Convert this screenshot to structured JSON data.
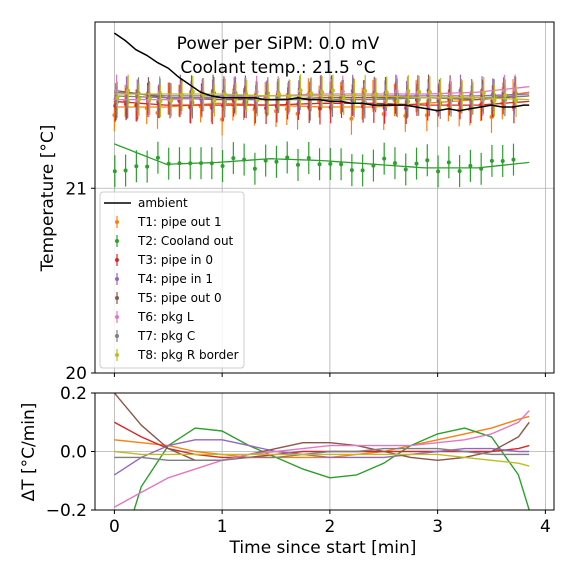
{
  "chart_data": [
    {
      "type": "scatter",
      "annotations": [
        "Power per SiPM: 0.0 mV",
        "Coolant temp.: 21.5 °C"
      ],
      "xlabel": "",
      "ylabel": "Temperature [°C]",
      "xlim": [
        -0.18,
        4.08
      ],
      "ylim": [
        20,
        21.9
      ],
      "xticks": [
        0,
        1,
        2,
        3,
        4
      ],
      "yticks": [
        20,
        21
      ],
      "yticklabels": [
        "20",
        "21"
      ],
      "grid": true,
      "legend_position": "center-left",
      "ambient": {
        "name": "ambient",
        "color": "#000000",
        "x": [
          0,
          0.1,
          0.2,
          0.3,
          0.4,
          0.5,
          0.6,
          0.7,
          0.8,
          0.9,
          1.0,
          1.1,
          1.2,
          1.3,
          1.4,
          1.5,
          1.6,
          1.7,
          1.8,
          1.9,
          2.0,
          2.1,
          2.2,
          2.3,
          2.4,
          2.5,
          2.6,
          2.7,
          2.8,
          2.9,
          3.0,
          3.1,
          3.2,
          3.3,
          3.4,
          3.5,
          3.6,
          3.7,
          3.8,
          3.85
        ],
        "y": [
          21.84,
          21.8,
          21.75,
          21.72,
          21.68,
          21.65,
          21.6,
          21.56,
          21.52,
          21.5,
          21.49,
          21.49,
          21.49,
          21.49,
          21.48,
          21.48,
          21.48,
          21.49,
          21.48,
          21.48,
          21.47,
          21.47,
          21.46,
          21.46,
          21.45,
          21.45,
          21.45,
          21.45,
          21.44,
          21.43,
          21.42,
          21.43,
          21.42,
          21.43,
          21.44,
          21.45,
          21.44,
          21.44,
          21.45,
          21.45
        ]
      },
      "series": [
        {
          "name": "T1: pipe out 1",
          "color": "#ff7f0e",
          "base": 21.44,
          "spread": 0.07,
          "fit": [
            21.44,
            21.44,
            21.46,
            21.45,
            21.44,
            21.44,
            21.46,
            21.48,
            21.52
          ]
        },
        {
          "name": "T2: Cooland out",
          "color": "#2ca02c",
          "base": 21.13,
          "spread": 0.04,
          "fit": [
            21.24,
            21.13,
            21.14,
            21.16,
            21.15,
            21.13,
            21.11,
            21.11,
            21.14
          ]
        },
        {
          "name": "T3: pipe in 0",
          "color": "#d62728",
          "base": 21.46,
          "spread": 0.03,
          "fit": [
            21.47,
            21.45,
            21.45,
            21.45,
            21.46,
            21.46,
            21.45,
            21.45,
            21.47
          ]
        },
        {
          "name": "T4: pipe in 1",
          "color": "#9467bd",
          "base": 21.5,
          "spread": 0.03,
          "fit": [
            21.52,
            21.5,
            21.5,
            21.5,
            21.5,
            21.5,
            21.5,
            21.5,
            21.51
          ]
        },
        {
          "name": "T5: pipe out 0",
          "color": "#8c564b",
          "base": 21.49,
          "spread": 0.04,
          "fit": [
            21.53,
            21.49,
            21.48,
            21.48,
            21.49,
            21.49,
            21.49,
            21.48,
            21.5
          ]
        },
        {
          "name": "T6: pkg L",
          "color": "#e377c2",
          "base": 21.5,
          "spread": 0.03,
          "fit": [
            21.48,
            21.48,
            21.49,
            21.5,
            21.51,
            21.51,
            21.51,
            21.52,
            21.55
          ]
        },
        {
          "name": "T7: pkg C",
          "color": "#7f7f7f",
          "base": 21.49,
          "spread": 0.03,
          "fit": [
            21.5,
            21.49,
            21.49,
            21.48,
            21.48,
            21.48,
            21.49,
            21.49,
            21.5
          ]
        },
        {
          "name": "T8: pkg R border",
          "color": "#bcbd22",
          "base": 21.5,
          "spread": 0.03,
          "fit": [
            21.51,
            21.51,
            21.51,
            21.5,
            21.5,
            21.5,
            21.49,
            21.49,
            21.48
          ]
        }
      ]
    },
    {
      "type": "line",
      "xlabel": "Time since start [min]",
      "ylabel": "ΔT [°C/min]",
      "xlim": [
        -0.18,
        4.08
      ],
      "ylim": [
        -0.2,
        0.2
      ],
      "xticks": [
        0,
        1,
        2,
        3,
        4
      ],
      "xticklabels": [
        "0",
        "1",
        "2",
        "3",
        "4"
      ],
      "yticks": [
        -0.2,
        0.0,
        0.2
      ],
      "yticklabels": [
        "−0.2",
        "0.0",
        "0.2"
      ],
      "grid": true,
      "x": [
        0,
        0.25,
        0.5,
        0.75,
        1.0,
        1.25,
        1.5,
        1.75,
        2.0,
        2.25,
        2.5,
        2.75,
        3.0,
        3.25,
        3.5,
        3.75,
        3.85
      ],
      "series": [
        {
          "color": "#ff7f0e",
          "values": [
            0.04,
            0.03,
            0.02,
            0.0,
            -0.01,
            -0.02,
            -0.02,
            -0.02,
            -0.02,
            -0.01,
            0.0,
            0.02,
            0.04,
            0.06,
            0.08,
            0.11,
            0.12
          ]
        },
        {
          "color": "#2ca02c",
          "values": [
            -0.42,
            -0.12,
            0.02,
            0.08,
            0.07,
            0.02,
            -0.02,
            -0.06,
            -0.09,
            -0.08,
            -0.04,
            0.02,
            0.06,
            0.08,
            0.05,
            -0.08,
            -0.2
          ]
        },
        {
          "color": "#d62728",
          "values": [
            0.1,
            0.05,
            0.01,
            -0.01,
            -0.02,
            -0.02,
            -0.01,
            0.0,
            0.0,
            0.0,
            0.0,
            0.0,
            0.0,
            0.0,
            0.0,
            0.01,
            0.02
          ]
        },
        {
          "color": "#9467bd",
          "values": [
            -0.08,
            -0.02,
            0.02,
            0.04,
            0.04,
            0.02,
            0.0,
            -0.01,
            -0.02,
            -0.02,
            -0.02,
            -0.01,
            0.0,
            0.01,
            0.01,
            0.0,
            0.0
          ]
        },
        {
          "color": "#8c564b",
          "values": [
            0.2,
            0.09,
            0.01,
            -0.03,
            -0.03,
            -0.01,
            0.01,
            0.03,
            0.03,
            0.02,
            0.0,
            -0.02,
            -0.03,
            -0.02,
            0.0,
            0.05,
            0.1
          ]
        },
        {
          "color": "#e377c2",
          "values": [
            -0.19,
            -0.14,
            -0.09,
            -0.06,
            -0.03,
            -0.01,
            0.0,
            0.01,
            0.02,
            0.02,
            0.02,
            0.02,
            0.03,
            0.04,
            0.06,
            0.1,
            0.14
          ]
        },
        {
          "color": "#7f7f7f",
          "values": [
            -0.02,
            -0.02,
            -0.03,
            -0.03,
            -0.03,
            -0.02,
            -0.02,
            -0.01,
            0.0,
            0.0,
            0.01,
            0.01,
            0.01,
            0.0,
            -0.01,
            -0.01,
            -0.01
          ]
        },
        {
          "color": "#bcbd22",
          "values": [
            0.0,
            -0.01,
            -0.01,
            -0.01,
            -0.01,
            -0.01,
            -0.01,
            -0.01,
            -0.01,
            -0.01,
            -0.01,
            -0.01,
            -0.01,
            -0.02,
            -0.03,
            -0.04,
            -0.05
          ]
        }
      ]
    }
  ]
}
